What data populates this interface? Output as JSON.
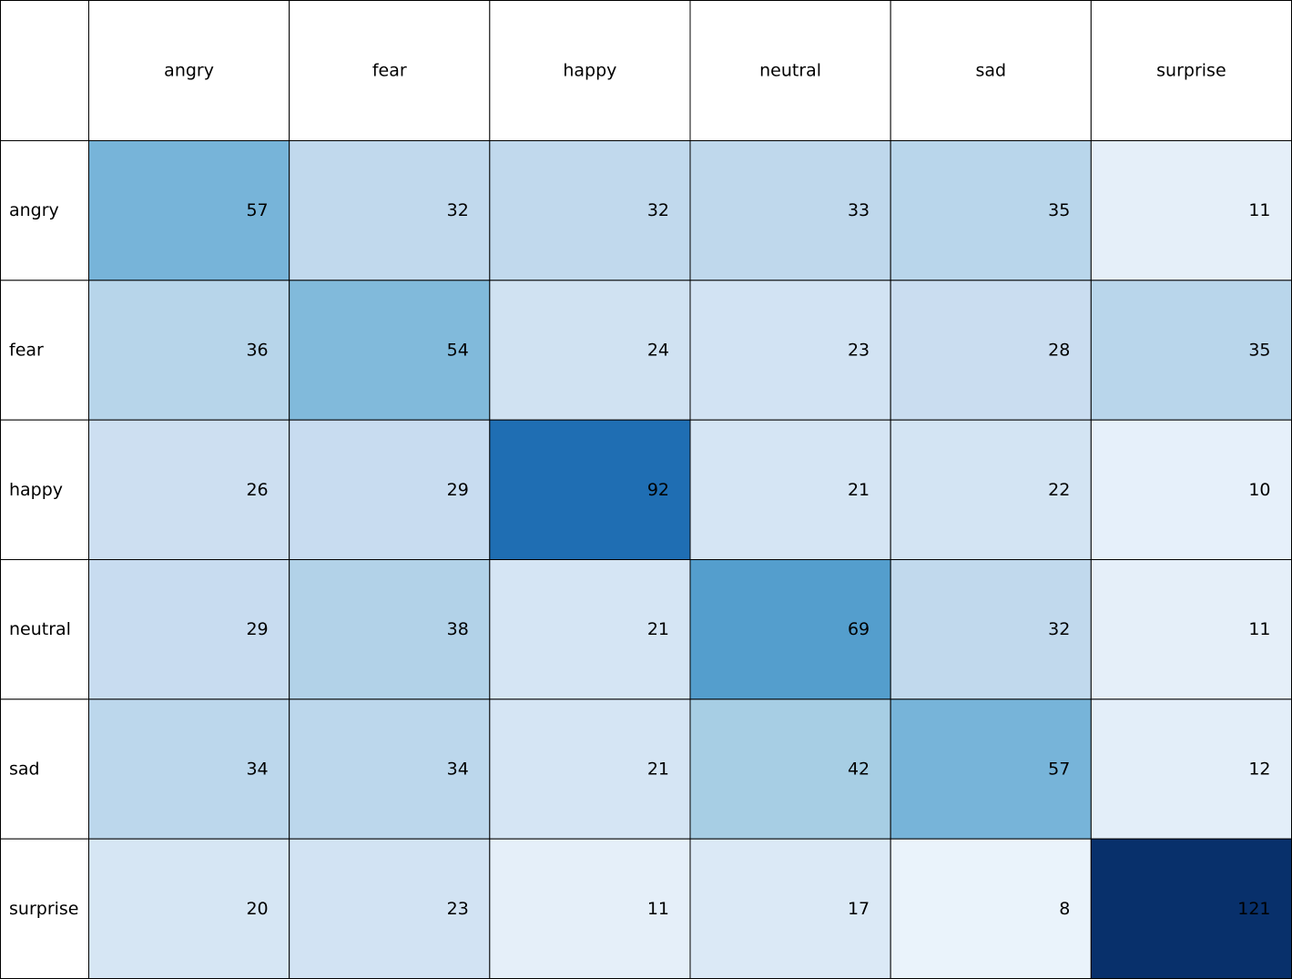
{
  "chart_data": {
    "type": "table",
    "columns": [
      "angry",
      "fear",
      "happy",
      "neutral",
      "sad",
      "surprise"
    ],
    "rows": [
      "angry",
      "fear",
      "happy",
      "neutral",
      "sad",
      "surprise"
    ],
    "values": [
      [
        57,
        32,
        32,
        33,
        35,
        11
      ],
      [
        36,
        54,
        24,
        23,
        28,
        35
      ],
      [
        26,
        29,
        92,
        21,
        22,
        10
      ],
      [
        29,
        38,
        21,
        69,
        32,
        11
      ],
      [
        34,
        34,
        21,
        42,
        57,
        12
      ],
      [
        20,
        23,
        11,
        17,
        8,
        121
      ]
    ],
    "colormap": "Blues",
    "color_range": [
      0,
      121
    ],
    "grid": true
  }
}
